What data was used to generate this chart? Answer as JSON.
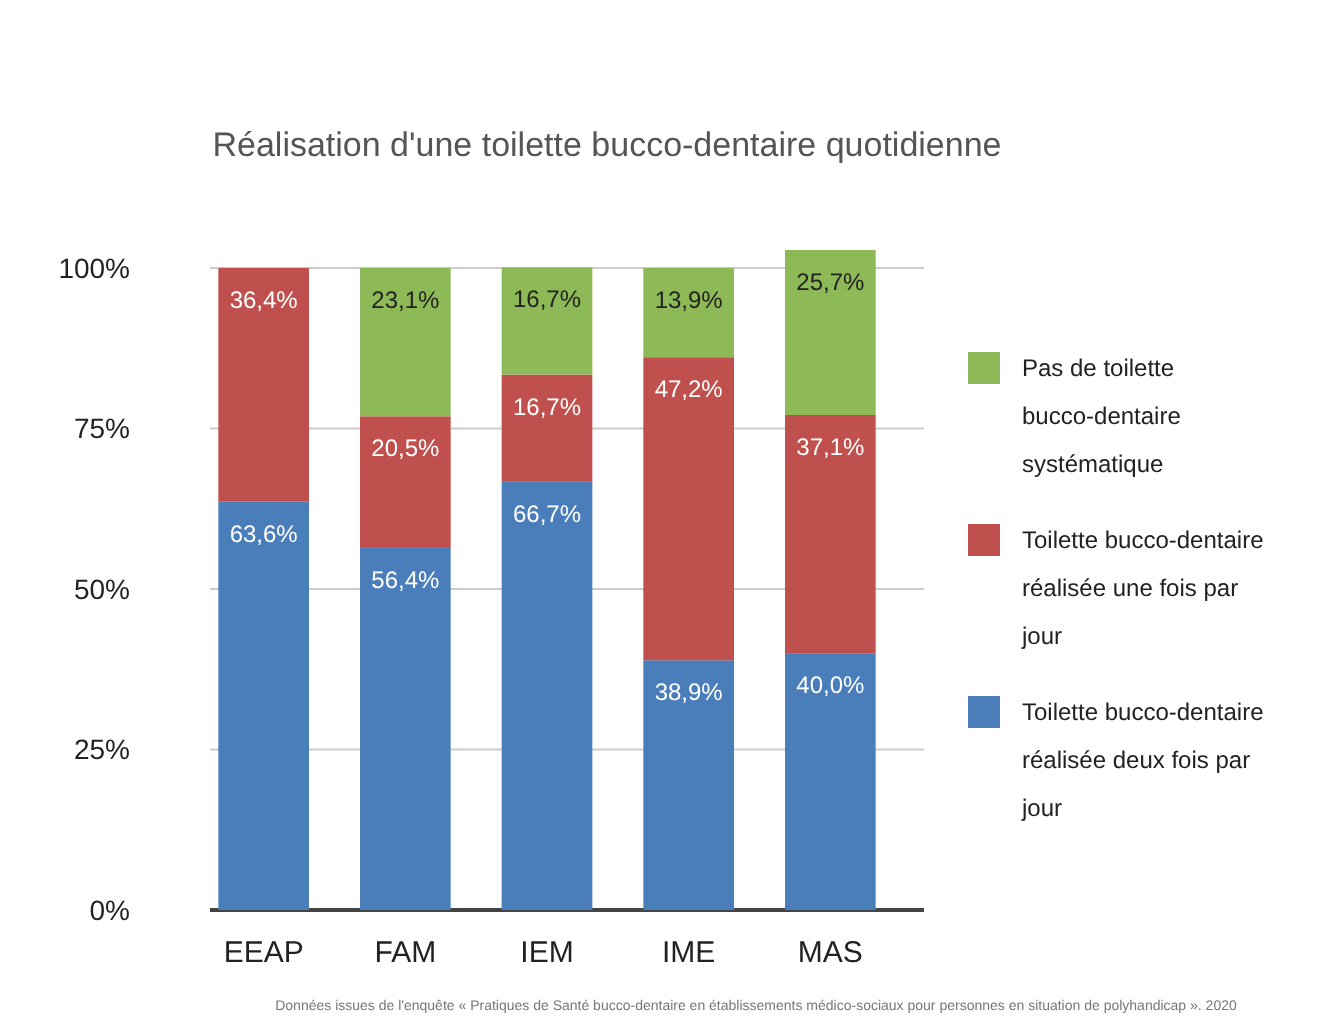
{
  "chart_data": {
    "type": "bar",
    "stacked": true,
    "title": "Réalisation d'une toilette bucco-dentaire quotidienne",
    "categories": [
      "EEAP",
      "FAM",
      "IEM",
      "IME",
      "MAS"
    ],
    "series": [
      {
        "name": "Toilette bucco-dentaire réalisée deux fois par jour",
        "color": "#4a7ebb",
        "values": [
          63.6,
          56.4,
          66.7,
          38.9,
          40.0
        ],
        "value_labels": [
          "63,6%",
          "56,4%",
          "66,7%",
          "38,9%",
          "40,0%"
        ]
      },
      {
        "name": "Toilette bucco-dentaire réalisée une fois par jour",
        "color": "#c0504d",
        "values": [
          36.4,
          20.5,
          16.7,
          47.2,
          37.1
        ],
        "value_labels": [
          "36,4%",
          "20,5%",
          "16,7%",
          "47,2%",
          "37,1%"
        ]
      },
      {
        "name": "Pas de toilette bucco-dentaire systématique",
        "color": "#8db956",
        "values": [
          0,
          23.1,
          16.7,
          13.9,
          25.7
        ],
        "value_labels": [
          null,
          "23,1%",
          "16,7%",
          "13,9%",
          "25,7%"
        ]
      }
    ],
    "ylim": [
      0,
      102.8
    ],
    "yticks": [
      {
        "value": 0,
        "label": "0%"
      },
      {
        "value": 25,
        "label": "25%"
      },
      {
        "value": 50,
        "label": "50%"
      },
      {
        "value": 75,
        "label": "75%"
      },
      {
        "value": 100,
        "label": "100%"
      }
    ],
    "grid": "y",
    "legend": "right",
    "annotations": [
      "Données issues de l'enquête « Pratiques de Santé bucco-dentaire en établissements médico-sociaux pour personnes en situation de polyhandicap ». 2020"
    ]
  }
}
